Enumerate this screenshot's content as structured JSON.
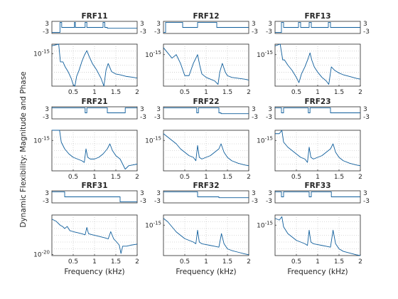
{
  "figure": {
    "ylabel": "Dynamic Flexibility: Magnitude and Phase"
  },
  "chart_data": [
    {
      "type": "line",
      "title": "FRF11",
      "xlabel": "",
      "xlim": [
        0,
        2
      ],
      "xticks": [
        "0.5",
        "1",
        "1.5",
        "2"
      ],
      "phase": {
        "ylim": [
          -3,
          3
        ],
        "yticks": [
          "3",
          "-3"
        ],
        "x": [
          0,
          0.19,
          0.19,
          0.23,
          0.23,
          0.53,
          0.53,
          0.55,
          0.55,
          0.78,
          0.78,
          0.82,
          0.82,
          1.2,
          1.2,
          1.24,
          1.24,
          1.3,
          1.3,
          2
        ],
        "y": [
          -3,
          -3,
          3,
          3,
          0,
          0,
          3,
          3,
          0,
          0,
          3,
          3,
          0,
          0,
          3,
          3,
          0,
          0,
          -0.5,
          -0.5
        ]
      },
      "magnitude": {
        "ylim": [
          -17,
          -14.4
        ],
        "ytick_labels": [
          "10^{-15}"
        ],
        "ytick_values": [
          -15
        ],
        "x": [
          0,
          0.16,
          0.2,
          0.26,
          0.31,
          0.38,
          0.45,
          0.5,
          0.54,
          0.58,
          0.64,
          0.7,
          0.76,
          0.82,
          0.88,
          0.95,
          1.05,
          1.15,
          1.22,
          1.27,
          1.32,
          1.4,
          1.5,
          1.6,
          1.75,
          1.9,
          2
        ],
        "y": [
          -14.5,
          -14.4,
          -15.5,
          -15.5,
          -15.8,
          -16.1,
          -16.5,
          -16.9,
          -17.0,
          -16.4,
          -16,
          -15.5,
          -15.1,
          -14.8,
          -15.2,
          -15.6,
          -16,
          -16.5,
          -17.0,
          -16.0,
          -15.6,
          -16.1,
          -16.25,
          -16.3,
          -16.4,
          -16.45,
          -16.5
        ]
      }
    },
    {
      "type": "line",
      "title": "FRF12",
      "xlabel": "",
      "xlim": [
        0,
        2
      ],
      "xticks": [
        "0.5",
        "1",
        "1.5",
        "2"
      ],
      "phase": {
        "ylim": [
          -3,
          3
        ],
        "yticks": [
          "3",
          "-3"
        ],
        "x": [
          0,
          0.05,
          0.05,
          0.45,
          0.45,
          0.8,
          0.8,
          1.25,
          1.25,
          2
        ],
        "y": [
          -3,
          -3,
          3,
          3,
          0,
          0,
          3,
          3,
          0,
          0
        ]
      },
      "magnitude": {
        "ylim": [
          -16.8,
          -14.4
        ],
        "ytick_labels": [
          "10^{-15}"
        ],
        "ytick_values": [
          -15
        ],
        "x": [
          0,
          0.1,
          0.2,
          0.3,
          0.4,
          0.5,
          0.6,
          0.7,
          0.8,
          0.85,
          0.9,
          1.0,
          1.1,
          1.2,
          1.28,
          1.32,
          1.38,
          1.45,
          1.5,
          1.6,
          1.75,
          1.9,
          2
        ],
        "y": [
          -14.6,
          -14.9,
          -15.2,
          -15,
          -15.5,
          -16.2,
          -16.2,
          -15.5,
          -15.0,
          -15.6,
          -16.1,
          -16.3,
          -16.4,
          -16.5,
          -16.7,
          -16.0,
          -15.5,
          -16.0,
          -16.2,
          -16.3,
          -16.35,
          -16.4,
          -16.45
        ]
      }
    },
    {
      "type": "line",
      "title": "FRF13",
      "xlabel": "",
      "xlim": [
        0,
        2
      ],
      "xticks": [
        "0.5",
        "1",
        "1.5",
        "2"
      ],
      "phase": {
        "ylim": [
          -3,
          3
        ],
        "yticks": [
          "3",
          "-3"
        ],
        "x": [
          0,
          0.15,
          0.15,
          0.2,
          0.2,
          0.55,
          0.55,
          0.6,
          0.6,
          0.8,
          0.8,
          0.85,
          0.85,
          1.25,
          1.25,
          1.3,
          1.3,
          2
        ],
        "y": [
          -3,
          -3,
          3,
          3,
          0,
          0,
          3,
          3,
          0,
          0,
          3,
          3,
          0,
          0,
          3,
          3,
          0,
          0
        ]
      },
      "magnitude": {
        "ylim": [
          -16.8,
          -14.4
        ],
        "ytick_labels": [
          "10^{-15}"
        ],
        "ytick_values": [
          -15
        ],
        "x": [
          0,
          0.12,
          0.18,
          0.22,
          0.3,
          0.4,
          0.5,
          0.56,
          0.62,
          0.7,
          0.78,
          0.82,
          0.86,
          0.92,
          1.0,
          1.1,
          1.2,
          1.26,
          1.32,
          1.4,
          1.5,
          1.6,
          1.75,
          1.9,
          2
        ],
        "y": [
          -14.5,
          -14.4,
          -15.3,
          -15.3,
          -15.6,
          -15.9,
          -16.3,
          -16.6,
          -16.1,
          -15.7,
          -15.2,
          -14.9,
          -15.3,
          -15.7,
          -16,
          -16.3,
          -16.5,
          -16.7,
          -15.7,
          -15.9,
          -16.05,
          -16.15,
          -16.25,
          -16.35,
          -16.4
        ]
      }
    },
    {
      "type": "line",
      "title": "FRF21",
      "xlabel": "",
      "xlim": [
        0,
        2
      ],
      "xticks": [
        "0.5",
        "1",
        "1.5",
        "2"
      ],
      "phase": {
        "ylim": [
          -3,
          3
        ],
        "yticks": [
          "3",
          "-3"
        ],
        "x": [
          0,
          0.78,
          0.78,
          0.82,
          0.82,
          1.3,
          1.3,
          1.72,
          1.72,
          2
        ],
        "y": [
          3,
          3,
          0,
          0,
          3,
          3,
          0,
          0,
          3,
          3
        ]
      },
      "magnitude": {
        "ylim": [
          -16.8,
          -14.4
        ],
        "ytick_labels": [
          "10^{-15}"
        ],
        "ytick_values": [
          -15
        ],
        "x": [
          0,
          0.18,
          0.22,
          0.3,
          0.4,
          0.5,
          0.6,
          0.7,
          0.76,
          0.8,
          0.84,
          0.9,
          1.0,
          1.1,
          1.2,
          1.3,
          1.36,
          1.42,
          1.5,
          1.6,
          1.72,
          1.8,
          1.9,
          2
        ],
        "y": [
          -14.4,
          -14.4,
          -15.1,
          -15.5,
          -15.8,
          -16.0,
          -16.1,
          -16.2,
          -16.3,
          -15.5,
          -16.0,
          -16.1,
          -16.1,
          -16.0,
          -15.8,
          -15.5,
          -15.2,
          -15.6,
          -15.9,
          -16.1,
          -16.7,
          -16.5,
          -16.45,
          -16.4
        ]
      }
    },
    {
      "type": "line",
      "title": "FRF22",
      "xlabel": "",
      "xlim": [
        0,
        2
      ],
      "xticks": [
        "0.5",
        "1",
        "1.5",
        "2"
      ],
      "phase": {
        "ylim": [
          -3,
          3
        ],
        "yticks": [
          "3",
          "-3"
        ],
        "x": [
          0,
          0.78,
          0.78,
          0.82,
          0.82,
          1.3,
          1.3,
          1.35,
          1.35,
          2
        ],
        "y": [
          3,
          3,
          0,
          0,
          3,
          3,
          0,
          0,
          -0.5,
          -0.5
        ]
      },
      "magnitude": {
        "ylim": [
          -16.8,
          -14.4
        ],
        "ytick_labels": [
          "10^{-15}"
        ],
        "ytick_values": [
          -15
        ],
        "x": [
          0,
          0.1,
          0.2,
          0.3,
          0.4,
          0.5,
          0.6,
          0.7,
          0.76,
          0.8,
          0.84,
          0.9,
          1.0,
          1.1,
          1.2,
          1.3,
          1.35,
          1.42,
          1.5,
          1.6,
          1.75,
          1.9,
          2
        ],
        "y": [
          -14.6,
          -14.8,
          -15.0,
          -15.2,
          -15.5,
          -15.7,
          -15.9,
          -16.0,
          -16.2,
          -15.3,
          -16.0,
          -16.1,
          -16.0,
          -15.9,
          -15.7,
          -15.5,
          -15.2,
          -15.7,
          -16.0,
          -16.2,
          -16.35,
          -16.45,
          -16.5
        ]
      }
    },
    {
      "type": "line",
      "title": "FRF23",
      "xlabel": "",
      "xlim": [
        0,
        2
      ],
      "xticks": [
        "0.5",
        "1",
        "1.5",
        "2"
      ],
      "phase": {
        "ylim": [
          -3,
          3
        ],
        "yticks": [
          "3",
          "-3"
        ],
        "x": [
          0,
          0.15,
          0.15,
          0.2,
          0.2,
          0.78,
          0.78,
          0.82,
          0.82,
          1.3,
          1.3,
          1.35,
          1.35,
          2
        ],
        "y": [
          3,
          3,
          0,
          0,
          3,
          3,
          0,
          0,
          3,
          3,
          0,
          0,
          0,
          0
        ]
      },
      "magnitude": {
        "ylim": [
          -16.8,
          -14.4
        ],
        "ytick_labels": [
          "10^{-15}"
        ],
        "ytick_values": [
          -15
        ],
        "x": [
          0,
          0.1,
          0.16,
          0.2,
          0.3,
          0.4,
          0.5,
          0.6,
          0.7,
          0.76,
          0.8,
          0.84,
          0.9,
          1.0,
          1.1,
          1.2,
          1.3,
          1.36,
          1.42,
          1.5,
          1.6,
          1.75,
          1.9,
          2
        ],
        "y": [
          -14.6,
          -14.6,
          -14.4,
          -15.1,
          -15.4,
          -15.6,
          -15.8,
          -16.0,
          -16.1,
          -16.3,
          -15.4,
          -16.0,
          -16.1,
          -16.0,
          -15.9,
          -15.7,
          -15.5,
          -15.2,
          -15.7,
          -16.0,
          -16.2,
          -16.35,
          -16.45,
          -16.5
        ]
      }
    },
    {
      "type": "line",
      "title": "FRF31",
      "xlabel": "Frequency (kHz)",
      "xlim": [
        0,
        2
      ],
      "xticks": [
        "0.5",
        "1",
        "1.5",
        "2"
      ],
      "phase": {
        "ylim": [
          -3,
          3
        ],
        "yticks": [
          "3",
          "-3"
        ],
        "x": [
          0,
          0.3,
          0.3,
          1.6,
          1.6,
          2
        ],
        "y": [
          3,
          3,
          0,
          0,
          -3,
          -3
        ]
      },
      "magnitude": {
        "ylim": [
          -20.1,
          -16.2
        ],
        "ytick_labels": [
          "10^{-20}"
        ],
        "ytick_values": [
          -20
        ],
        "x": [
          0,
          0.1,
          0.2,
          0.25,
          0.3,
          0.36,
          0.42,
          0.5,
          0.6,
          0.7,
          0.78,
          0.82,
          0.86,
          0.95,
          1.05,
          1.15,
          1.25,
          1.32,
          1.38,
          1.45,
          1.52,
          1.58,
          1.62,
          1.66,
          1.75,
          1.85,
          2
        ],
        "y": [
          -16.6,
          -16.8,
          -17.2,
          -17.3,
          -17.5,
          -17.3,
          -17.7,
          -17.8,
          -17.9,
          -18.0,
          -18.1,
          -17.4,
          -18.0,
          -18.1,
          -18.2,
          -18.3,
          -18.4,
          -18.5,
          -17.8,
          -18.5,
          -18.8,
          -19.1,
          -19.9,
          -19.2,
          -19.2,
          -19.1,
          -19.0
        ]
      }
    },
    {
      "type": "line",
      "title": "FRF32",
      "xlabel": "Frequency (kHz)",
      "xlim": [
        0,
        2
      ],
      "xticks": [
        "0.5",
        "1",
        "1.5",
        "2"
      ],
      "phase": {
        "ylim": [
          -3,
          3
        ],
        "yticks": [
          "3",
          "-3"
        ],
        "x": [
          0,
          0.8,
          0.8,
          1.3,
          1.3,
          2
        ],
        "y": [
          3,
          3,
          0,
          0,
          -0.5,
          -0.5
        ]
      },
      "magnitude": {
        "ylim": [
          -16.8,
          -14.4
        ],
        "ytick_labels": [
          "10^{-15}"
        ],
        "ytick_values": [
          -15
        ],
        "x": [
          0,
          0.1,
          0.2,
          0.3,
          0.4,
          0.5,
          0.6,
          0.7,
          0.76,
          0.8,
          0.84,
          0.9,
          1.0,
          1.1,
          1.2,
          1.3,
          1.36,
          1.42,
          1.5,
          1.6,
          1.75,
          1.9,
          2
        ],
        "y": [
          -14.6,
          -14.8,
          -15.1,
          -15.4,
          -15.6,
          -15.8,
          -15.9,
          -16.0,
          -16.1,
          -15.3,
          -16.0,
          -16.1,
          -16.15,
          -16.2,
          -16.25,
          -16.3,
          -15.5,
          -16.1,
          -16.4,
          -16.5,
          -16.6,
          -16.7,
          -16.75
        ]
      }
    },
    {
      "type": "line",
      "title": "FRF33",
      "xlabel": "Frequency (kHz)",
      "xlim": [
        0,
        2
      ],
      "xticks": [
        "0.5",
        "1",
        "1.5",
        "2"
      ],
      "phase": {
        "ylim": [
          -3,
          3
        ],
        "yticks": [
          "3",
          "-3"
        ],
        "x": [
          0,
          0.15,
          0.15,
          0.2,
          0.2,
          0.8,
          0.8,
          0.85,
          0.85,
          1.32,
          1.32,
          1.36,
          1.36,
          2
        ],
        "y": [
          3,
          3,
          0,
          0,
          3,
          3,
          0,
          0,
          3,
          3,
          0,
          0,
          0,
          0
        ]
      },
      "magnitude": {
        "ylim": [
          -16.8,
          -14.4
        ],
        "ytick_labels": [
          "10^{-15}"
        ],
        "ytick_values": [
          -15
        ],
        "x": [
          0,
          0.1,
          0.16,
          0.2,
          0.3,
          0.4,
          0.5,
          0.6,
          0.7,
          0.76,
          0.8,
          0.84,
          0.9,
          1.0,
          1.1,
          1.2,
          1.3,
          1.36,
          1.42,
          1.5,
          1.6,
          1.75,
          1.9,
          2
        ],
        "y": [
          -14.6,
          -14.7,
          -14.5,
          -15.1,
          -15.5,
          -15.7,
          -15.9,
          -16.0,
          -16.1,
          -16.2,
          -15.3,
          -16.0,
          -16.1,
          -16.15,
          -16.2,
          -16.25,
          -16.3,
          -15.3,
          -16.1,
          -16.4,
          -16.55,
          -16.65,
          -16.75,
          -16.8
        ]
      }
    }
  ]
}
